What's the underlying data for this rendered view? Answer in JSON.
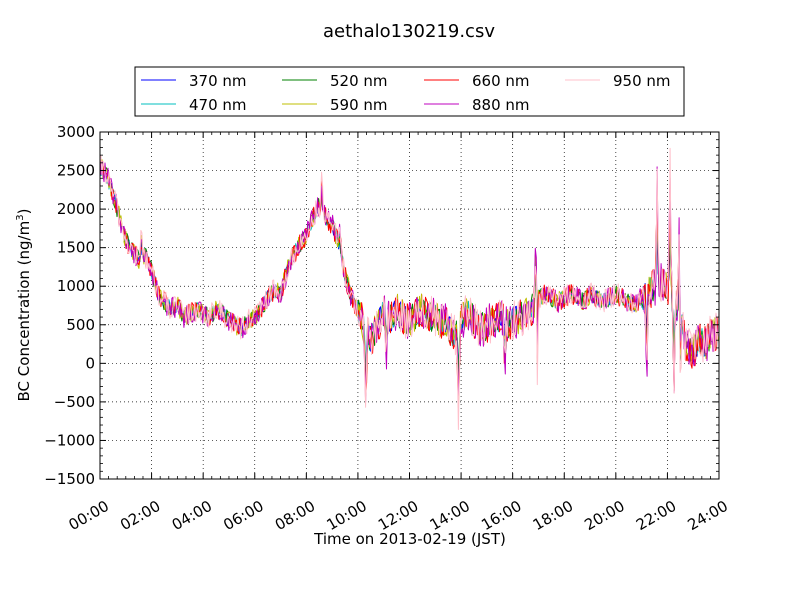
{
  "chart_data": {
    "type": "line",
    "title": "aethalo130219.csv",
    "xlabel": "Time on 2013-02-19 (JST)",
    "ylabel": "BC Concentration (ng/m",
    "ylabel_sup": "3",
    "ylabel_end": ")",
    "xlim": [
      "00:00",
      "24:00"
    ],
    "ylim": [
      -1500,
      3000
    ],
    "xticks": [
      "00:00",
      "02:00",
      "04:00",
      "06:00",
      "08:00",
      "10:00",
      "12:00",
      "14:00",
      "16:00",
      "18:00",
      "20:00",
      "22:00",
      "24:00"
    ],
    "yticks": [
      -1500,
      -1000,
      -500,
      0,
      500,
      1000,
      1500,
      2000,
      2500,
      3000
    ],
    "grid": true,
    "legend_position": "top, outside plot, 4 columns",
    "series": [
      {
        "name": "370 nm",
        "color": "#0000ff"
      },
      {
        "name": "470 nm",
        "color": "#00bfbf"
      },
      {
        "name": "520 nm",
        "color": "#008000"
      },
      {
        "name": "590 nm",
        "color": "#bfbf00"
      },
      {
        "name": "660 nm",
        "color": "#ff0000"
      },
      {
        "name": "880 nm",
        "color": "#bf00bf"
      },
      {
        "name": "950 nm",
        "color": "#ffc0cb"
      }
    ],
    "x_hours": [
      0,
      0.25,
      0.5,
      0.75,
      1,
      1.25,
      1.5,
      1.75,
      2,
      2.25,
      2.5,
      2.75,
      3,
      3.25,
      3.5,
      3.75,
      4,
      4.25,
      4.5,
      4.75,
      5,
      5.25,
      5.5,
      5.75,
      6,
      6.25,
      6.5,
      6.75,
      7,
      7.25,
      7.5,
      7.75,
      8,
      8.25,
      8.5,
      8.75,
      9,
      9.25,
      9.5,
      9.75,
      10,
      10.25,
      10.5,
      10.75,
      11,
      11.25,
      11.5,
      11.75,
      12,
      12.25,
      12.5,
      12.75,
      13,
      13.25,
      13.5,
      13.75,
      14,
      14.25,
      14.5,
      14.75,
      15,
      15.25,
      15.5,
      15.75,
      16,
      16.25,
      16.5,
      16.75,
      17,
      17.25,
      17.5,
      17.75,
      18,
      18.25,
      18.5,
      18.75,
      19,
      19.25,
      19.5,
      19.75,
      20,
      20.25,
      20.5,
      20.75,
      21,
      21.25,
      21.5,
      21.75,
      22,
      22.25,
      22.5,
      22.75,
      23,
      23.25,
      23.5,
      23.75
    ],
    "base_values": [
      2550,
      2450,
      2200,
      1900,
      1600,
      1450,
      1350,
      1400,
      1200,
      900,
      800,
      700,
      750,
      600,
      650,
      700,
      650,
      600,
      700,
      650,
      550,
      500,
      450,
      550,
      600,
      700,
      850,
      950,
      900,
      1200,
      1400,
      1550,
      1650,
      1900,
      2050,
      1900,
      1800,
      1550,
      1150,
      850,
      700,
      450,
      300,
      500,
      650,
      550,
      700,
      600,
      550,
      650,
      700,
      600,
      600,
      550,
      500,
      350,
      550,
      650,
      550,
      450,
      500,
      550,
      600,
      500,
      550,
      600,
      650,
      700,
      850,
      900,
      850,
      800,
      850,
      900,
      850,
      800,
      900,
      850,
      800,
      850,
      900,
      850,
      800,
      750,
      850,
      900,
      1000,
      1050,
      950,
      800,
      600,
      200,
      150,
      300,
      250,
      400
    ]
  }
}
